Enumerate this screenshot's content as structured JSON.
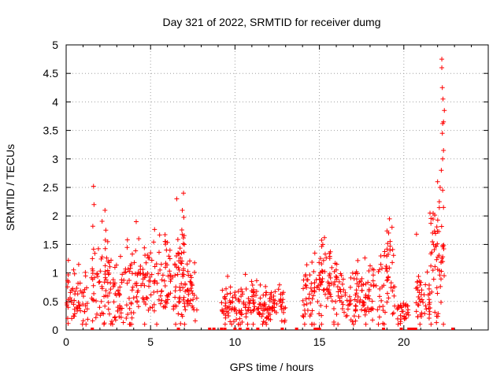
{
  "chart_data": {
    "type": "scatter",
    "title": "Day 321 of 2022, SRMTID for receiver dumg",
    "xlabel": "GPS time / hours",
    "ylabel": "SRMTID / TECUs",
    "xlim": [
      0,
      25
    ],
    "ylim": [
      0,
      5
    ],
    "x_ticks": [
      "0",
      "5",
      "10",
      "15",
      "20"
    ],
    "y_ticks": [
      "0",
      "0.5",
      "1",
      "1.5",
      "2",
      "2.5",
      "3",
      "3.5",
      "4",
      "4.5",
      "5"
    ],
    "grid": true,
    "marker": "+",
    "series_color": "#ff0000",
    "bursts": [
      {
        "start": 0.0,
        "end": 1.3,
        "level": 0.55,
        "spread": 0.5,
        "n": 60,
        "seed": 11
      },
      {
        "start": 1.5,
        "end": 2.5,
        "level": 0.9,
        "spread": 0.8,
        "n": 55,
        "seed": 12
      },
      {
        "start": 2.5,
        "end": 3.5,
        "level": 0.65,
        "spread": 0.6,
        "n": 50,
        "seed": 13
      },
      {
        "start": 3.5,
        "end": 4.6,
        "level": 0.75,
        "spread": 0.7,
        "n": 55,
        "seed": 14
      },
      {
        "start": 4.6,
        "end": 5.8,
        "level": 0.8,
        "spread": 0.7,
        "n": 55,
        "seed": 15
      },
      {
        "start": 5.8,
        "end": 6.6,
        "level": 0.85,
        "spread": 0.8,
        "n": 45,
        "seed": 16
      },
      {
        "start": 6.6,
        "end": 7.0,
        "level": 1.1,
        "spread": 0.9,
        "n": 40,
        "seed": 17
      },
      {
        "start": 7.0,
        "end": 7.8,
        "level": 0.6,
        "spread": 0.45,
        "n": 40,
        "seed": 18
      },
      {
        "start": 9.2,
        "end": 10.1,
        "level": 0.45,
        "spread": 0.35,
        "n": 45,
        "seed": 19
      },
      {
        "start": 10.2,
        "end": 11.6,
        "level": 0.45,
        "spread": 0.35,
        "n": 70,
        "seed": 20
      },
      {
        "start": 11.6,
        "end": 13.0,
        "level": 0.4,
        "spread": 0.3,
        "n": 70,
        "seed": 21
      },
      {
        "start": 14.0,
        "end": 14.9,
        "level": 0.65,
        "spread": 0.55,
        "n": 45,
        "seed": 22
      },
      {
        "start": 14.9,
        "end": 15.7,
        "level": 0.9,
        "spread": 0.7,
        "n": 50,
        "seed": 23
      },
      {
        "start": 15.7,
        "end": 17.2,
        "level": 0.6,
        "spread": 0.5,
        "n": 70,
        "seed": 24
      },
      {
        "start": 17.2,
        "end": 18.6,
        "level": 0.6,
        "spread": 0.45,
        "n": 65,
        "seed": 25
      },
      {
        "start": 18.6,
        "end": 19.5,
        "level": 1.0,
        "spread": 0.9,
        "n": 45,
        "seed": 26
      },
      {
        "start": 19.6,
        "end": 20.3,
        "level": 0.3,
        "spread": 0.3,
        "n": 30,
        "seed": 27
      },
      {
        "start": 20.7,
        "end": 21.6,
        "level": 0.55,
        "spread": 0.45,
        "n": 45,
        "seed": 28
      },
      {
        "start": 21.6,
        "end": 22.4,
        "level": 1.1,
        "spread": 1.0,
        "n": 55,
        "seed": 29
      }
    ],
    "highlights": [
      [
        1.62,
        2.52
      ],
      [
        1.65,
        2.2
      ],
      [
        1.58,
        1.82
      ],
      [
        2.3,
        2.1
      ],
      [
        2.35,
        1.75
      ],
      [
        4.15,
        1.9
      ],
      [
        4.3,
        1.6
      ],
      [
        6.55,
        2.3
      ],
      [
        6.95,
        2.4
      ],
      [
        6.88,
        2.1
      ],
      [
        7.0,
        1.5
      ],
      [
        15.3,
        1.62
      ],
      [
        15.2,
        1.5
      ],
      [
        19.15,
        1.95
      ],
      [
        19.3,
        1.8
      ],
      [
        19.1,
        1.7
      ],
      [
        22.0,
        2.6
      ],
      [
        22.15,
        2.5
      ],
      [
        22.1,
        2.25
      ],
      [
        22.35,
        2.15
      ],
      [
        22.3,
        2.45
      ],
      [
        22.22,
        2.8
      ],
      [
        22.3,
        3.0
      ],
      [
        22.35,
        3.15
      ],
      [
        22.28,
        3.45
      ],
      [
        22.3,
        3.62
      ],
      [
        22.35,
        3.65
      ],
      [
        22.4,
        3.85
      ],
      [
        22.32,
        4.05
      ],
      [
        22.28,
        4.25
      ],
      [
        22.25,
        4.6
      ],
      [
        22.25,
        4.75
      ],
      [
        21.55,
        2.05
      ],
      [
        21.7,
        1.7
      ],
      [
        20.75,
        1.68
      ]
    ],
    "zero_points": [
      1.55,
      6.65,
      8.5,
      8.75,
      9.2,
      9.4,
      10.0,
      10.3,
      10.75,
      11.35,
      12.8,
      13.65,
      14.75,
      14.8,
      14.9,
      14.95,
      15.0,
      18.8,
      19.85,
      20.3,
      20.45,
      20.6,
      20.7,
      22.9
    ]
  }
}
